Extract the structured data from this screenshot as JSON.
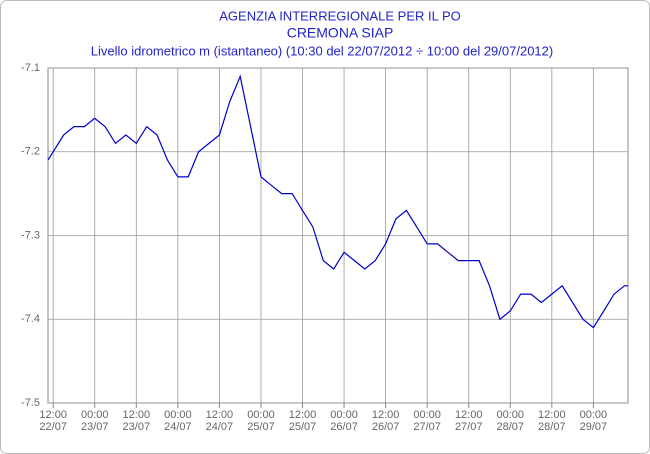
{
  "chart_data": {
    "type": "line",
    "header": "AGENZIA INTERREGIONALE PER IL PO",
    "title": "CREMONA SIAP",
    "subtitle": "Livello idrometrico m (istantaneo) (10:30 del 22/07/2012 ÷ 10:00 del 29/07/2012)",
    "x": [
      "2012-07-22 10:30",
      "2012-07-22 12:00",
      "2012-07-22 15:00",
      "2012-07-22 18:00",
      "2012-07-22 21:00",
      "2012-07-23 00:00",
      "2012-07-23 03:00",
      "2012-07-23 06:00",
      "2012-07-23 09:00",
      "2012-07-23 12:00",
      "2012-07-23 15:00",
      "2012-07-23 18:00",
      "2012-07-23 21:00",
      "2012-07-24 00:00",
      "2012-07-24 03:00",
      "2012-07-24 06:00",
      "2012-07-24 09:00",
      "2012-07-24 12:00",
      "2012-07-24 15:00",
      "2012-07-24 18:00",
      "2012-07-24 21:00",
      "2012-07-25 00:00",
      "2012-07-25 03:00",
      "2012-07-25 06:00",
      "2012-07-25 09:00",
      "2012-07-25 12:00",
      "2012-07-25 15:00",
      "2012-07-25 18:00",
      "2012-07-25 21:00",
      "2012-07-26 00:00",
      "2012-07-26 03:00",
      "2012-07-26 06:00",
      "2012-07-26 09:00",
      "2012-07-26 12:00",
      "2012-07-26 15:00",
      "2012-07-26 18:00",
      "2012-07-26 21:00",
      "2012-07-27 00:00",
      "2012-07-27 03:00",
      "2012-07-27 06:00",
      "2012-07-27 09:00",
      "2012-07-27 12:00",
      "2012-07-27 15:00",
      "2012-07-27 18:00",
      "2012-07-27 21:00",
      "2012-07-28 00:00",
      "2012-07-28 03:00",
      "2012-07-28 06:00",
      "2012-07-28 09:00",
      "2012-07-28 12:00",
      "2012-07-28 15:00",
      "2012-07-28 18:00",
      "2012-07-28 21:00",
      "2012-07-29 00:00",
      "2012-07-29 03:00",
      "2012-07-29 06:00",
      "2012-07-29 09:00",
      "2012-07-29 10:00"
    ],
    "values": [
      -7.21,
      -7.2,
      -7.18,
      -7.17,
      -7.17,
      -7.16,
      -7.17,
      -7.19,
      -7.18,
      -7.19,
      -7.17,
      -7.18,
      -7.21,
      -7.23,
      -7.23,
      -7.2,
      -7.19,
      -7.18,
      -7.14,
      -7.11,
      -7.17,
      -7.23,
      -7.24,
      -7.25,
      -7.25,
      -7.27,
      -7.29,
      -7.33,
      -7.34,
      -7.32,
      -7.33,
      -7.34,
      -7.33,
      -7.31,
      -7.28,
      -7.27,
      -7.29,
      -7.31,
      -7.31,
      -7.32,
      -7.33,
      -7.33,
      -7.33,
      -7.36,
      -7.4,
      -7.39,
      -7.37,
      -7.37,
      -7.38,
      -7.37,
      -7.36,
      -7.38,
      -7.4,
      -7.41,
      -7.39,
      -7.37,
      -7.36,
      -7.36
    ],
    "color": "#0000cc",
    "xlim": [
      "2012-07-22 10:30",
      "2012-07-29 10:00"
    ],
    "xticks": [
      {
        "value": "2012-07-22 12:00",
        "label": [
          "12:00",
          "22/07"
        ]
      },
      {
        "value": "2012-07-23 00:00",
        "label": [
          "00:00",
          "23/07"
        ]
      },
      {
        "value": "2012-07-23 12:00",
        "label": [
          "12:00",
          "23/07"
        ]
      },
      {
        "value": "2012-07-24 00:00",
        "label": [
          "00:00",
          "24/07"
        ]
      },
      {
        "value": "2012-07-24 12:00",
        "label": [
          "12:00",
          "24/07"
        ]
      },
      {
        "value": "2012-07-25 00:00",
        "label": [
          "00:00",
          "25/07"
        ]
      },
      {
        "value": "2012-07-25 12:00",
        "label": [
          "12:00",
          "25/07"
        ]
      },
      {
        "value": "2012-07-26 00:00",
        "label": [
          "00:00",
          "26/07"
        ]
      },
      {
        "value": "2012-07-26 12:00",
        "label": [
          "12:00",
          "26/07"
        ]
      },
      {
        "value": "2012-07-27 00:00",
        "label": [
          "00:00",
          "27/07"
        ]
      },
      {
        "value": "2012-07-27 12:00",
        "label": [
          "12:00",
          "27/07"
        ]
      },
      {
        "value": "2012-07-28 00:00",
        "label": [
          "00:00",
          "28/07"
        ]
      },
      {
        "value": "2012-07-28 12:00",
        "label": [
          "12:00",
          "28/07"
        ]
      },
      {
        "value": "2012-07-29 00:00",
        "label": [
          "00:00",
          "29/07"
        ]
      }
    ],
    "ylim": [
      -7.5,
      -7.1
    ],
    "yticks": [
      -7.5,
      -7.4,
      -7.3,
      -7.2,
      -7.1
    ],
    "grid": true
  }
}
